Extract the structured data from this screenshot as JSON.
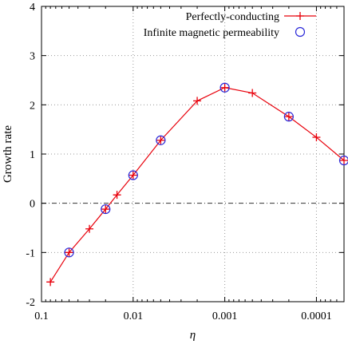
{
  "chart_data": {
    "type": "line",
    "xlabel": "η",
    "ylabel": "Growth rate",
    "x_scale": "log",
    "x_reversed": true,
    "xlim": [
      0.1,
      5e-05
    ],
    "ylim": [
      -2,
      4
    ],
    "x_ticks": [
      {
        "value": 0.1,
        "label": "0.1"
      },
      {
        "value": 0.01,
        "label": "0.01"
      },
      {
        "value": 0.001,
        "label": "0.001"
      },
      {
        "value": 0.0001,
        "label": "0.0001"
      }
    ],
    "y_ticks": [
      {
        "value": -2,
        "label": "-2"
      },
      {
        "value": -1,
        "label": "-1"
      },
      {
        "value": 0,
        "label": "0"
      },
      {
        "value": 1,
        "label": "1"
      },
      {
        "value": 2,
        "label": "2"
      },
      {
        "value": 3,
        "label": "3"
      },
      {
        "value": 4,
        "label": "4"
      }
    ],
    "grid": true,
    "zero_line": true,
    "legend_position": "top-right",
    "series": [
      {
        "name": "Perfectly-conducting",
        "style": "line-plus",
        "color": "#e8000b",
        "points": [
          [
            0.08,
            -1.6
          ],
          [
            0.05,
            -1.0
          ],
          [
            0.03,
            -0.52
          ],
          [
            0.02,
            -0.12
          ],
          [
            0.015,
            0.17
          ],
          [
            0.01,
            0.57
          ],
          [
            0.005,
            1.28
          ],
          [
            0.002,
            2.08
          ],
          [
            0.001,
            2.35
          ],
          [
            0.0005,
            2.24
          ],
          [
            0.0002,
            1.76
          ],
          [
            0.0001,
            1.34
          ],
          [
            5e-05,
            0.87
          ]
        ]
      },
      {
        "name": "Infinite magnetic permeability",
        "style": "open-circle",
        "color": "#2a28d8",
        "points": [
          [
            0.05,
            -1.0
          ],
          [
            0.02,
            -0.12
          ],
          [
            0.01,
            0.57
          ],
          [
            0.005,
            1.28
          ],
          [
            0.001,
            2.35
          ],
          [
            0.0002,
            1.76
          ],
          [
            5e-05,
            0.87
          ]
        ]
      }
    ]
  }
}
